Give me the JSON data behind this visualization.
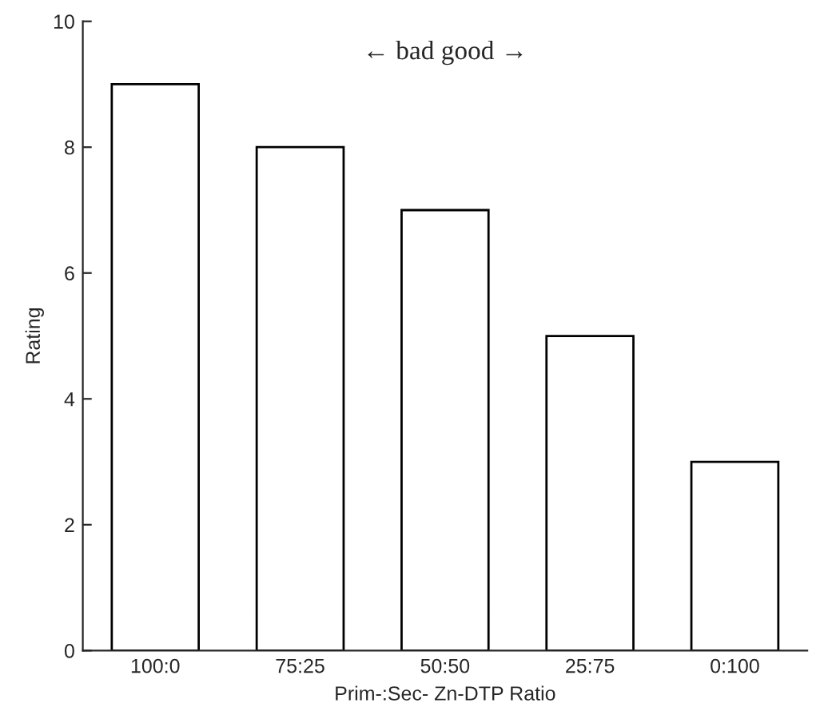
{
  "chart_data": {
    "type": "bar",
    "xlabel": "Prim-:Sec- Zn-DTP Ratio",
    "ylabel": "Rating",
    "categories": [
      "100:0",
      "75:25",
      "50:50",
      "25:75",
      "0:100"
    ],
    "values": [
      9,
      8,
      7,
      5,
      3
    ],
    "color": "#ffffff",
    "ylim": [
      0,
      10
    ],
    "yticks": [
      0,
      2,
      4,
      6,
      8,
      10
    ],
    "grid": false,
    "annotations": [
      "← bad good →"
    ]
  }
}
